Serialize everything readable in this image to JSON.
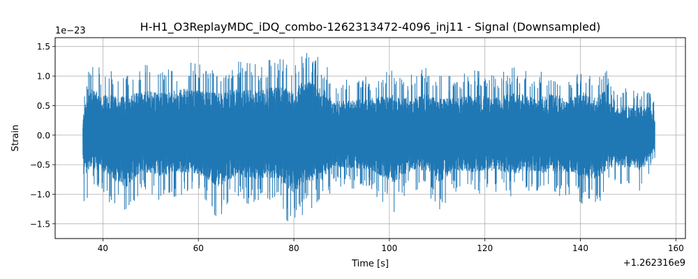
{
  "chart_data": {
    "type": "line",
    "title": "H-H1_O3ReplayMDC_iDQ_combo-1262313472-4096_inj11 - Signal (Downsampled)",
    "xlabel": "Time [s]",
    "ylabel": "Strain",
    "x_offset_label": "+1.262316e9",
    "y_scale_label": "1e−23",
    "xlim": [
      30,
      162
    ],
    "ylim": [
      -1.75,
      1.65
    ],
    "xticks": [
      40,
      60,
      80,
      100,
      120,
      140,
      160
    ],
    "xtick_labels": [
      "40",
      "60",
      "80",
      "100",
      "120",
      "140",
      "160"
    ],
    "yticks": [
      -1.5,
      -1.0,
      -0.5,
      0.0,
      0.5,
      1.0,
      1.5
    ],
    "ytick_labels": [
      "−1.5",
      "−1.0",
      "−0.5",
      "0.0",
      "0.5",
      "1.0",
      "1.5"
    ],
    "grid": true,
    "series": [
      {
        "color": "#1f77b4",
        "x_range": [
          35.8,
          155.6
        ],
        "envelope": [
          {
            "x": 35.8,
            "min": -0.45,
            "max": 0.3
          },
          {
            "x": 36.0,
            "min": -1.22,
            "max": 0.72
          },
          {
            "x": 37.5,
            "min": -0.9,
            "max": 1.25
          },
          {
            "x": 40.0,
            "min": -1.0,
            "max": 1.1
          },
          {
            "x": 44.7,
            "min": -1.46,
            "max": 1.05
          },
          {
            "x": 48.0,
            "min": -1.0,
            "max": 1.2
          },
          {
            "x": 52.0,
            "min": -1.1,
            "max": 1.15
          },
          {
            "x": 57.0,
            "min": -1.0,
            "max": 1.25
          },
          {
            "x": 60.0,
            "min": -1.05,
            "max": 1.2
          },
          {
            "x": 64.0,
            "min": -1.4,
            "max": 1.15
          },
          {
            "x": 68.0,
            "min": -1.1,
            "max": 1.25
          },
          {
            "x": 72.0,
            "min": -1.2,
            "max": 1.2
          },
          {
            "x": 76.0,
            "min": -1.2,
            "max": 1.3
          },
          {
            "x": 80.0,
            "min": -1.58,
            "max": 1.25
          },
          {
            "x": 82.6,
            "min": -1.25,
            "max": 1.5
          },
          {
            "x": 86.0,
            "min": -1.2,
            "max": 1.25
          },
          {
            "x": 87.5,
            "min": -1.0,
            "max": 1.1
          },
          {
            "x": 88.0,
            "min": -0.85,
            "max": 0.9
          },
          {
            "x": 92.0,
            "min": -0.9,
            "max": 0.95
          },
          {
            "x": 96.0,
            "min": -0.95,
            "max": 1.0
          },
          {
            "x": 101.0,
            "min": -1.3,
            "max": 1.1
          },
          {
            "x": 104.0,
            "min": -1.0,
            "max": 1.0
          },
          {
            "x": 108.0,
            "min": -0.95,
            "max": 1.15
          },
          {
            "x": 110.0,
            "min": -1.3,
            "max": 1.0
          },
          {
            "x": 114.0,
            "min": -0.95,
            "max": 1.0
          },
          {
            "x": 118.0,
            "min": -1.0,
            "max": 1.1
          },
          {
            "x": 122.0,
            "min": -0.95,
            "max": 1.0
          },
          {
            "x": 126.0,
            "min": -1.05,
            "max": 1.15
          },
          {
            "x": 130.0,
            "min": -1.0,
            "max": 1.05
          },
          {
            "x": 134.0,
            "min": -1.05,
            "max": 1.1
          },
          {
            "x": 138.0,
            "min": -1.0,
            "max": 1.05
          },
          {
            "x": 140.7,
            "min": -1.18,
            "max": 1.15
          },
          {
            "x": 143.5,
            "min": -1.2,
            "max": 1.0
          },
          {
            "x": 145.0,
            "min": -1.0,
            "max": 1.2
          },
          {
            "x": 147.0,
            "min": -0.85,
            "max": 0.75
          },
          {
            "x": 150.0,
            "min": -0.9,
            "max": 0.8
          },
          {
            "x": 153.0,
            "min": -0.95,
            "max": 0.8
          },
          {
            "x": 155.0,
            "min": -0.5,
            "max": 0.75
          },
          {
            "x": 155.6,
            "min": -0.45,
            "max": 0.45
          }
        ],
        "typical_fraction": 0.6
      }
    ]
  }
}
